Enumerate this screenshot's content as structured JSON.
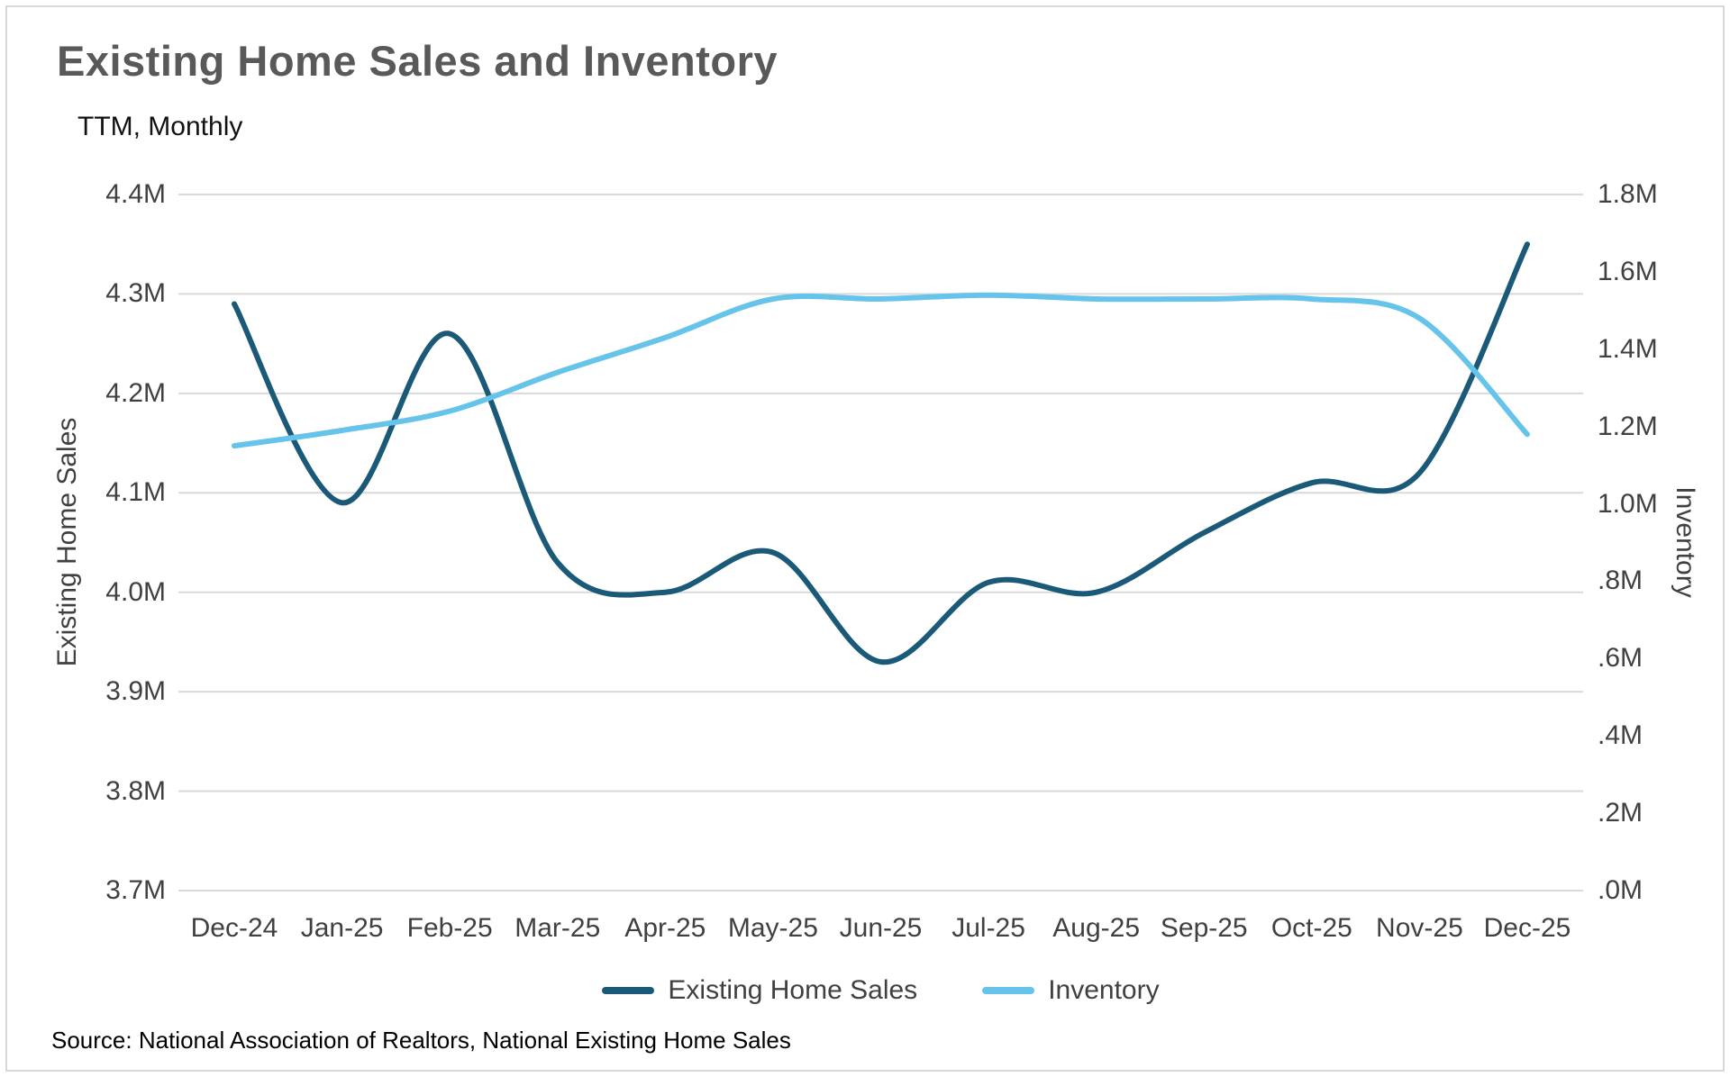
{
  "page": {
    "title": "Existing Home Sales and Inventory",
    "subtitle": "TTM, Monthly",
    "source": "Source: National Association of Realtors, National Existing Home Sales"
  },
  "colors": {
    "existing_home_sales_line": "#1A5A78",
    "inventory_line": "#66C3EA",
    "gridline": "#D9D9D9",
    "title_text": "#595959",
    "axis_text": "#404040"
  },
  "chart_data": {
    "type": "line",
    "title": "Existing Home Sales and Inventory",
    "subtitle": "TTM, Monthly",
    "grid": "horizontal",
    "legend_position": "bottom",
    "categories": [
      "Dec-24",
      "Jan-25",
      "Feb-25",
      "Mar-25",
      "Apr-25",
      "May-25",
      "Jun-25",
      "Jul-25",
      "Aug-25",
      "Sep-25",
      "Oct-25",
      "Nov-25",
      "Dec-25"
    ],
    "series": [
      {
        "name": "Existing Home Sales",
        "axis": "left",
        "color": "#1A5A78",
        "values": [
          4.29,
          4.09,
          4.26,
          4.03,
          4.0,
          4.04,
          3.93,
          4.01,
          4.0,
          4.06,
          4.11,
          4.12,
          4.35
        ]
      },
      {
        "name": "Inventory",
        "axis": "right",
        "color": "#66C3EA",
        "values": [
          1.15,
          1.19,
          1.24,
          1.34,
          1.43,
          1.53,
          1.53,
          1.54,
          1.53,
          1.53,
          1.53,
          1.48,
          1.18
        ]
      }
    ],
    "left_axis": {
      "label": "Existing Home Sales",
      "min": 3.7,
      "max": 4.4,
      "step": 0.1,
      "ticks": [
        "4.4M",
        "4.3M",
        "4.2M",
        "4.1M",
        "4.0M",
        "3.9M",
        "3.8M",
        "3.7M"
      ]
    },
    "right_axis": {
      "label": "Inventory",
      "min": 0.0,
      "max": 1.8,
      "step": 0.2,
      "ticks": [
        "1.8M",
        "1.6M",
        "1.4M",
        "1.2M",
        "1.0M",
        ".8M",
        ".6M",
        ".4M",
        ".2M",
        ".0M"
      ]
    }
  }
}
